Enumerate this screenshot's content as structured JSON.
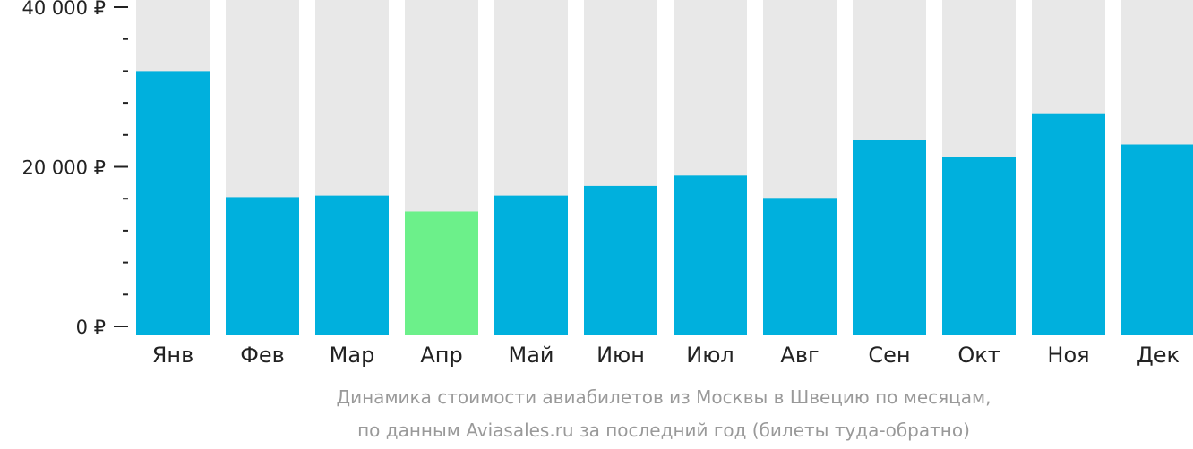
{
  "chart_data": {
    "type": "bar",
    "categories": [
      "Янв",
      "Фев",
      "Мар",
      "Апр",
      "Май",
      "Июн",
      "Июл",
      "Авг",
      "Сен",
      "Окт",
      "Ноя",
      "Дек"
    ],
    "values": [
      32000,
      16200,
      16400,
      14400,
      16400,
      17600,
      18900,
      16100,
      23400,
      21200,
      26700,
      22800
    ],
    "highlight_index": 3,
    "ylim": [
      0,
      40000
    ],
    "yticks": [
      {
        "value": 0,
        "label": "0 ₽"
      },
      {
        "value": 20000,
        "label": "20 000 ₽"
      },
      {
        "value": 40000,
        "label": "40 000 ₽"
      }
    ],
    "minor_tick_step": 4000,
    "caption_lines": [
      "Динамика стоимости авиабилетов из Москвы в Швецию по месяцам,",
      "по данным Aviasales.ru за последний год (билеты туда-обратно)"
    ],
    "colors": {
      "bar": "#00b0dd",
      "highlight": "#6cf08a",
      "track": "#e8e8e8",
      "text": "#222222",
      "caption": "#999999"
    }
  }
}
